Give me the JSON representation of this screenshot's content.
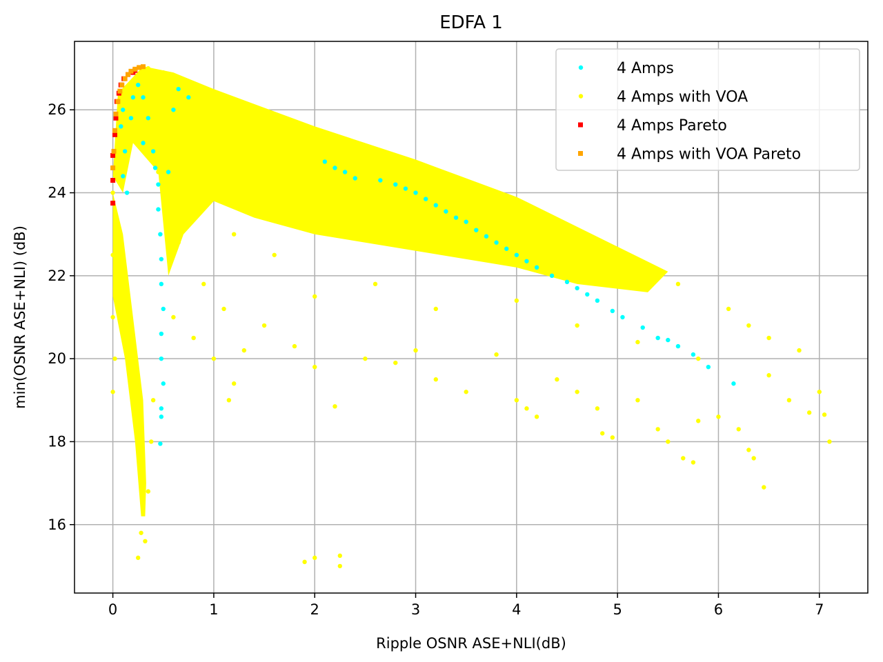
{
  "chart_data": {
    "type": "scatter",
    "title": "EDFA 1",
    "xlabel": "Ripple OSNR ASE+NLI(dB)",
    "ylabel": "min(OSNR ASE+NLI) (dB)",
    "xlim": [
      -0.38,
      7.48
    ],
    "ylim": [
      14.35,
      27.65
    ],
    "xticks": [
      0,
      1,
      2,
      3,
      4,
      5,
      6,
      7
    ],
    "yticks": [
      16,
      18,
      20,
      22,
      24,
      26
    ],
    "grid": true,
    "legend_position": "upper-right",
    "series": [
      {
        "name": "4 Amps",
        "color": "#00ffff",
        "marker": "circle",
        "points": [
          [
            0.05,
            26.2
          ],
          [
            0.08,
            25.6
          ],
          [
            0.1,
            26.0
          ],
          [
            0.12,
            25.0
          ],
          [
            0.1,
            24.4
          ],
          [
            0.14,
            24.0
          ],
          [
            0.18,
            25.8
          ],
          [
            0.2,
            26.3
          ],
          [
            0.25,
            26.6
          ],
          [
            0.3,
            26.3
          ],
          [
            0.35,
            25.8
          ],
          [
            0.3,
            25.2
          ],
          [
            0.4,
            25.0
          ],
          [
            0.42,
            24.6
          ],
          [
            0.45,
            24.2
          ],
          [
            0.45,
            23.6
          ],
          [
            0.47,
            23.0
          ],
          [
            0.48,
            22.4
          ],
          [
            0.48,
            21.8
          ],
          [
            0.5,
            21.2
          ],
          [
            0.48,
            20.6
          ],
          [
            0.48,
            20.0
          ],
          [
            0.5,
            19.4
          ],
          [
            0.48,
            18.8
          ],
          [
            0.48,
            18.6
          ],
          [
            0.47,
            17.95
          ],
          [
            0.55,
            24.5
          ],
          [
            0.6,
            26.0
          ],
          [
            0.65,
            26.5
          ],
          [
            0.75,
            26.3
          ],
          [
            2.1,
            24.75
          ],
          [
            2.2,
            24.6
          ],
          [
            2.3,
            24.5
          ],
          [
            2.4,
            24.35
          ],
          [
            2.65,
            24.3
          ],
          [
            2.8,
            24.2
          ],
          [
            2.9,
            24.1
          ],
          [
            3.0,
            24.0
          ],
          [
            3.1,
            23.85
          ],
          [
            3.2,
            23.7
          ],
          [
            3.3,
            23.55
          ],
          [
            3.4,
            23.4
          ],
          [
            3.5,
            23.3
          ],
          [
            3.6,
            23.1
          ],
          [
            3.7,
            22.95
          ],
          [
            3.8,
            22.8
          ],
          [
            3.9,
            22.65
          ],
          [
            4.0,
            22.5
          ],
          [
            4.1,
            22.35
          ],
          [
            4.2,
            22.2
          ],
          [
            4.35,
            22.0
          ],
          [
            4.5,
            21.85
          ],
          [
            4.6,
            21.7
          ],
          [
            4.7,
            21.55
          ],
          [
            4.8,
            21.4
          ],
          [
            4.95,
            21.15
          ],
          [
            5.05,
            21.0
          ],
          [
            5.25,
            20.75
          ],
          [
            5.4,
            20.5
          ],
          [
            5.5,
            20.45
          ],
          [
            5.6,
            20.3
          ],
          [
            5.75,
            20.1
          ],
          [
            5.9,
            19.8
          ],
          [
            6.15,
            19.4
          ]
        ]
      },
      {
        "name": "4 Amps with VOA",
        "color": "#ffff00",
        "marker": "circle",
        "points": [
          [
            0.0,
            24.0
          ],
          [
            0.0,
            22.5
          ],
          [
            0.0,
            21.0
          ],
          [
            0.02,
            20.0
          ],
          [
            0.0,
            19.2
          ],
          [
            0.05,
            22.0
          ],
          [
            0.1,
            21.5
          ],
          [
            0.15,
            20.5
          ],
          [
            0.2,
            19.5
          ],
          [
            0.25,
            18.5
          ],
          [
            0.28,
            17.5
          ],
          [
            0.3,
            16.5
          ],
          [
            0.28,
            15.8
          ],
          [
            0.25,
            15.2
          ],
          [
            0.32,
            15.6
          ],
          [
            0.35,
            16.8
          ],
          [
            0.38,
            18.0
          ],
          [
            0.4,
            19.0
          ],
          [
            0.6,
            21.0
          ],
          [
            0.8,
            20.5
          ],
          [
            1.0,
            20.0
          ],
          [
            1.2,
            19.4
          ],
          [
            1.15,
            19.0
          ],
          [
            1.3,
            20.2
          ],
          [
            1.5,
            20.8
          ],
          [
            1.8,
            20.3
          ],
          [
            2.0,
            19.8
          ],
          [
            2.2,
            18.85
          ],
          [
            2.0,
            15.2
          ],
          [
            1.9,
            15.1
          ],
          [
            2.25,
            15.25
          ],
          [
            2.25,
            15.0
          ],
          [
            2.5,
            20.0
          ],
          [
            2.8,
            19.9
          ],
          [
            3.0,
            20.2
          ],
          [
            3.2,
            19.5
          ],
          [
            3.5,
            19.2
          ],
          [
            3.8,
            20.1
          ],
          [
            4.0,
            19.0
          ],
          [
            4.1,
            18.8
          ],
          [
            4.2,
            18.6
          ],
          [
            4.4,
            19.5
          ],
          [
            4.6,
            19.2
          ],
          [
            4.8,
            18.8
          ],
          [
            4.85,
            18.2
          ],
          [
            4.95,
            18.1
          ],
          [
            5.2,
            19.0
          ],
          [
            5.4,
            18.3
          ],
          [
            5.5,
            18.0
          ],
          [
            5.65,
            17.6
          ],
          [
            5.75,
            17.5
          ],
          [
            5.8,
            18.5
          ],
          [
            6.0,
            18.6
          ],
          [
            6.2,
            18.3
          ],
          [
            6.3,
            17.8
          ],
          [
            6.35,
            17.6
          ],
          [
            6.5,
            19.6
          ],
          [
            6.7,
            19.0
          ],
          [
            6.8,
            20.2
          ],
          [
            6.9,
            18.7
          ],
          [
            6.45,
            16.9
          ],
          [
            7.0,
            19.2
          ],
          [
            7.05,
            18.65
          ],
          [
            7.1,
            18.0
          ],
          [
            6.1,
            21.2
          ],
          [
            6.3,
            20.8
          ],
          [
            6.5,
            20.5
          ],
          [
            5.6,
            21.8
          ],
          [
            5.0,
            22.5
          ],
          [
            4.5,
            22.9
          ],
          [
            3.5,
            23.8
          ],
          [
            2.5,
            25.0
          ],
          [
            1.5,
            25.8
          ],
          [
            1.0,
            26.3
          ],
          [
            0.5,
            26.9
          ],
          [
            0.35,
            27.0
          ],
          [
            0.8,
            24.0
          ],
          [
            1.2,
            23.0
          ],
          [
            1.6,
            22.5
          ],
          [
            2.0,
            21.5
          ],
          [
            2.6,
            21.8
          ],
          [
            3.2,
            21.2
          ],
          [
            4.0,
            21.4
          ],
          [
            4.6,
            20.8
          ],
          [
            5.2,
            20.4
          ],
          [
            5.8,
            20.0
          ],
          [
            0.65,
            22.8
          ],
          [
            0.9,
            21.8
          ],
          [
            1.1,
            21.2
          ],
          [
            0.45,
            24.5
          ]
        ]
      },
      {
        "name": "4 Amps Pareto",
        "color": "#ff0000",
        "marker": "square",
        "points": [
          [
            0.0,
            23.75
          ],
          [
            0.0,
            24.3
          ],
          [
            0.0,
            24.9
          ],
          [
            0.02,
            25.4
          ],
          [
            0.03,
            25.8
          ],
          [
            0.04,
            26.2
          ],
          [
            0.06,
            26.4
          ],
          [
            0.08,
            26.6
          ],
          [
            0.11,
            26.75
          ],
          [
            0.15,
            26.85
          ],
          [
            0.2,
            26.9
          ],
          [
            0.22,
            26.95
          ]
        ]
      },
      {
        "name": "4 Amps with VOA Pareto",
        "color": "#ffa500",
        "marker": "square",
        "points": [
          [
            0.0,
            24.6
          ],
          [
            0.01,
            25.0
          ],
          [
            0.02,
            25.5
          ],
          [
            0.03,
            25.9
          ],
          [
            0.05,
            26.2
          ],
          [
            0.07,
            26.45
          ],
          [
            0.09,
            26.6
          ],
          [
            0.12,
            26.75
          ],
          [
            0.15,
            26.85
          ],
          [
            0.18,
            26.93
          ],
          [
            0.22,
            26.98
          ],
          [
            0.26,
            27.02
          ],
          [
            0.3,
            27.04
          ]
        ]
      }
    ]
  }
}
